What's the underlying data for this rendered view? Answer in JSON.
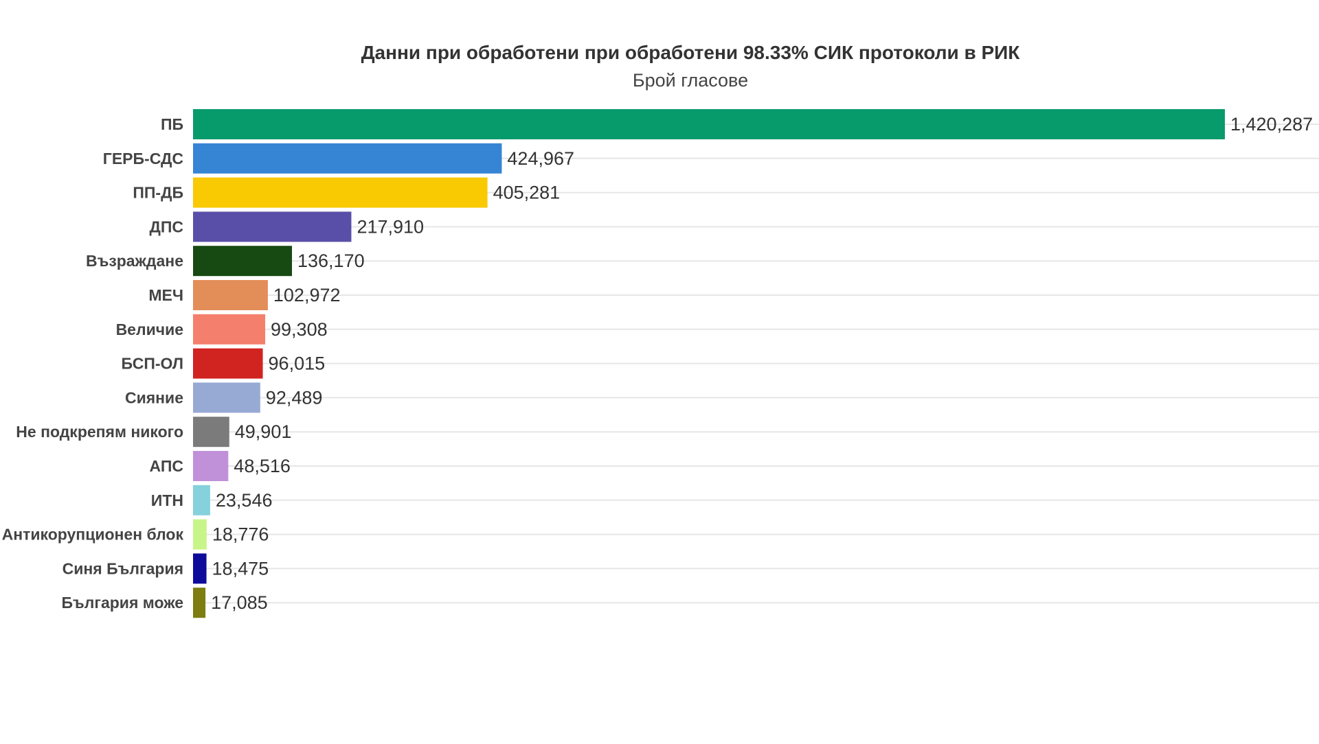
{
  "chart_data": {
    "type": "bar",
    "orientation": "horizontal",
    "title": "Данни при обработени при обработени 98.33% СИК протоколи в РИК",
    "subtitle": "Брой гласове",
    "categories": [
      "ПБ",
      "ГЕРБ-СДС",
      "ПП-ДБ",
      "ДПС",
      "Възраждане",
      "МЕЧ",
      "Величие",
      "БСП-ОЛ",
      "Сияние",
      "Не подкрепям никого",
      "АПС",
      "ИТН",
      "Антикорупционен блок",
      "Синя България",
      "България може"
    ],
    "values": [
      1420287,
      424967,
      405281,
      217910,
      136170,
      102972,
      99308,
      96015,
      92489,
      49901,
      48516,
      23546,
      18776,
      18475,
      17085
    ],
    "value_labels": [
      "1,420,287",
      "424,967",
      "405,281",
      "217,910",
      "136,170",
      "102,972",
      "99,308",
      "96,015",
      "92,489",
      "49,901",
      "48,516",
      "23,546",
      "18,776",
      "18,475",
      "17,085"
    ],
    "colors": [
      "#079a6b",
      "#3585d4",
      "#f9c902",
      "#5a4fa8",
      "#164a12",
      "#e38d59",
      "#f47f6c",
      "#d1231f",
      "#97aad4",
      "#7b7b7b",
      "#c091d9",
      "#85d1dc",
      "#c7f589",
      "#0c0b9a",
      "#7d7d10"
    ],
    "xlim": [
      0,
      1420287
    ],
    "grid": true,
    "legend": "none"
  }
}
